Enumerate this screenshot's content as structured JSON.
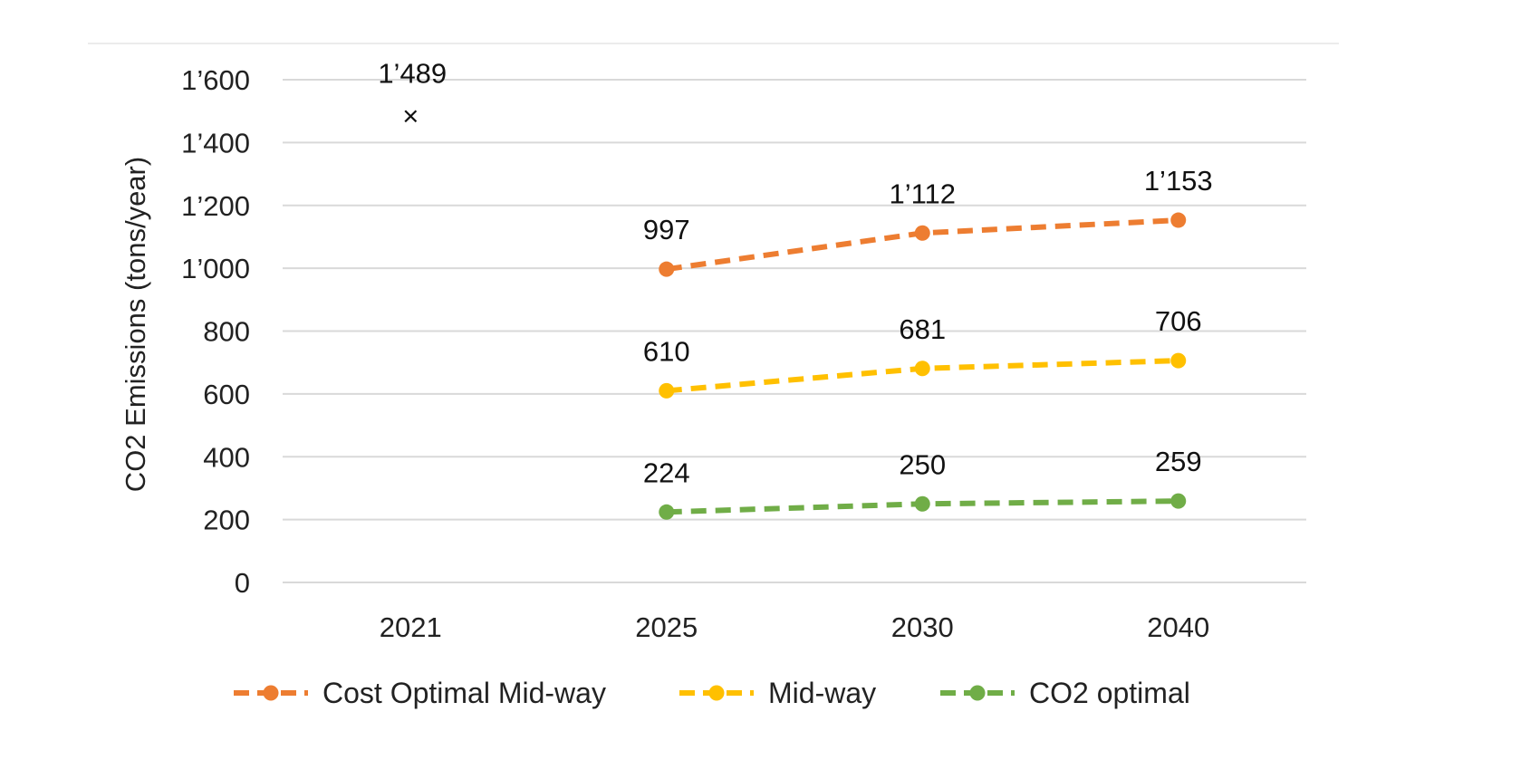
{
  "chart_data": {
    "type": "line",
    "categories": [
      "2021",
      "2025",
      "2030",
      "2040"
    ],
    "ylabel": "CO2 Emissions (tons/year)",
    "ylim": [
      0,
      1600
    ],
    "yticks": [
      0,
      200,
      400,
      600,
      800,
      1000,
      1200,
      1400,
      1600
    ],
    "ytick_labels": [
      "0",
      "200",
      "400",
      "600",
      "800",
      "1’000",
      "1’200",
      "1’400",
      "1’600"
    ],
    "grid": true,
    "legend_position": "bottom",
    "baseline": {
      "category": "2021",
      "value": 1489,
      "label": "1’489",
      "marker": "×"
    },
    "series": [
      {
        "name": "Cost Optimal Mid-way",
        "color": "#ED7D31",
        "values": [
          null,
          997,
          1112,
          1153
        ],
        "labels": [
          null,
          "997",
          "1’112",
          "1’153"
        ]
      },
      {
        "name": "Mid-way",
        "color": "#FFC000",
        "values": [
          null,
          610,
          681,
          706
        ],
        "labels": [
          null,
          "610",
          "681",
          "706"
        ]
      },
      {
        "name": "CO2 optimal",
        "color": "#70AD47",
        "values": [
          null,
          224,
          250,
          259
        ],
        "labels": [
          null,
          "224",
          "250",
          "259"
        ]
      }
    ]
  }
}
